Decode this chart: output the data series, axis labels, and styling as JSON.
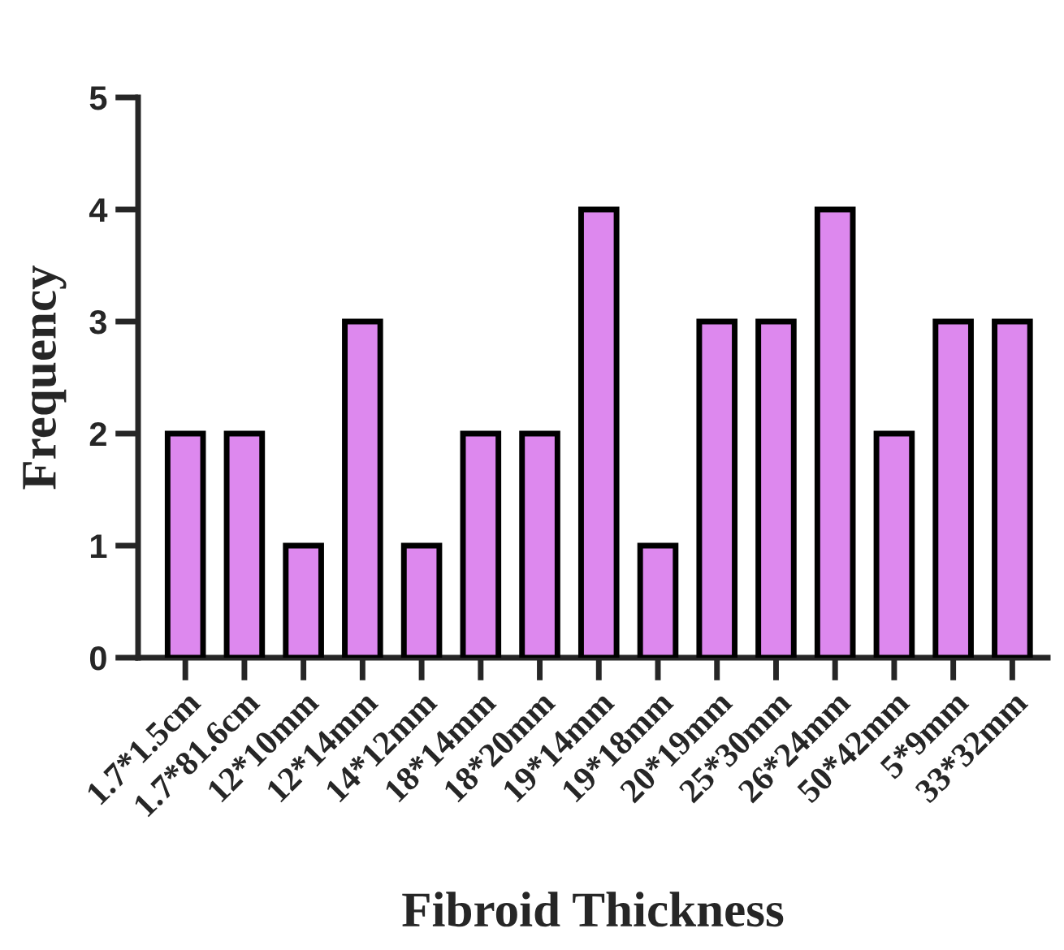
{
  "chart_data": {
    "type": "bar",
    "xlabel": "Fibroid Thickness",
    "ylabel": "Frequency",
    "categories": [
      "1.7*1.5cm",
      "1.7*81.6cm",
      "12*10mm",
      "12*14mm",
      "14*12mm",
      "18*14mm",
      "18*20mm",
      "19*14mm",
      "19*18mm",
      "20*19mm",
      "25*30mm",
      "26*24mm",
      "50*42mm",
      "5*9mm",
      "33*32mm"
    ],
    "values": [
      2,
      2,
      1,
      3,
      1,
      2,
      2,
      4,
      1,
      3,
      3,
      4,
      2,
      3,
      3
    ],
    "color": "#dd88ee",
    "ylim": [
      0,
      5
    ],
    "yticks": [
      0,
      1,
      2,
      3,
      4,
      5
    ],
    "grid": false,
    "legend": false
  }
}
